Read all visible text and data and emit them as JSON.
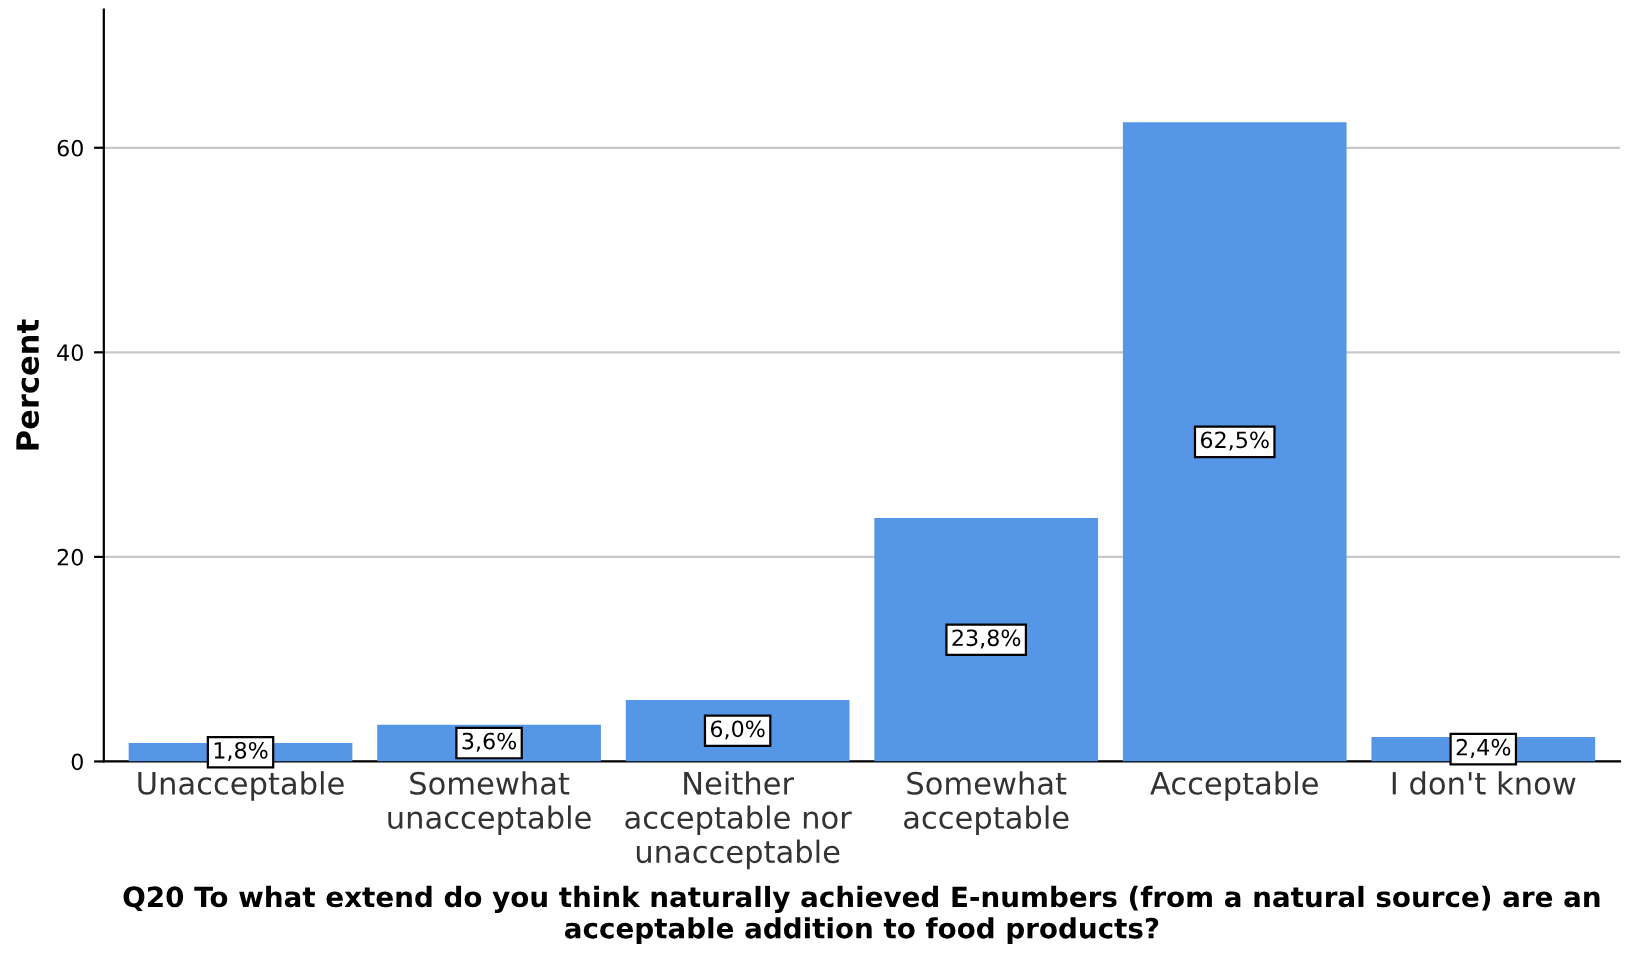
{
  "chart_data": {
    "type": "bar",
    "xlabel": "Q20 To what extend do you think naturally achieved E-numbers (from a natural source) are an\nacceptable addition to food products?",
    "ylabel": "Percent",
    "categories": [
      "Unacceptable",
      "Somewhat\nunacceptable",
      "Neither\nacceptable nor\nunacceptable",
      "Somewhat\nacceptable",
      "Acceptable",
      "I don't know"
    ],
    "values": [
      1.8,
      3.6,
      6.0,
      23.8,
      62.5,
      2.4
    ],
    "value_labels": [
      "1,8%",
      "3,6%",
      "6,0%",
      "23,8%",
      "62,5%",
      "2,4%"
    ],
    "color": "#5596e6",
    "ylim": [
      0,
      73.5
    ],
    "yticks": [
      0,
      20,
      40,
      60
    ],
    "grid": "y"
  }
}
